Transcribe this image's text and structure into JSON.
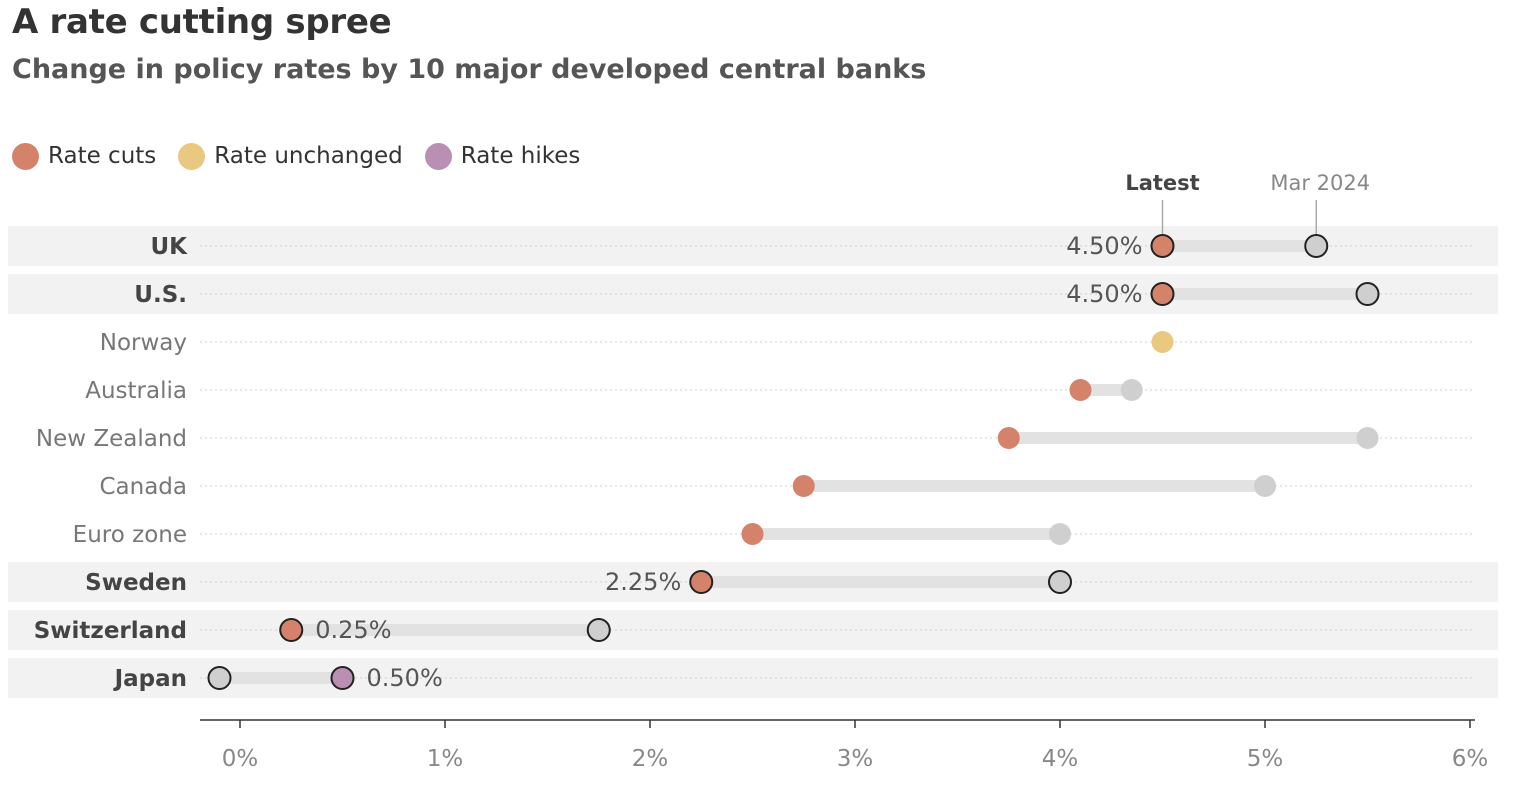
{
  "chart_data": {
    "type": "dumbbell",
    "title": "A rate cutting spree",
    "subtitle": "Change in policy rates by 10 major developed central banks",
    "legend": [
      {
        "label": "Rate cuts",
        "color": "#d4826a"
      },
      {
        "label": "Rate unchanged",
        "color": "#ebc87f"
      },
      {
        "label": "Rate hikes",
        "color": "#b98fb3"
      }
    ],
    "header_labels": {
      "latest": "Latest",
      "previous": "Mar 2024"
    },
    "x_ticks": [
      "0%",
      "1%",
      "2%",
      "3%",
      "4%",
      "5%",
      "6%"
    ],
    "xlim": [
      -0.2,
      6
    ],
    "series": [
      {
        "name": "Latest",
        "role": "latest"
      },
      {
        "name": "Mar 2024",
        "role": "previous"
      }
    ],
    "rows": [
      {
        "country": "UK",
        "latest": 4.5,
        "previous": 5.25,
        "change": "cut",
        "highlight": true,
        "label": "4.50%"
      },
      {
        "country": "U.S.",
        "latest": 4.5,
        "previous": 5.5,
        "change": "cut",
        "highlight": true,
        "label": "4.50%"
      },
      {
        "country": "Norway",
        "latest": 4.5,
        "previous": 4.5,
        "change": "unchanged",
        "highlight": false,
        "label": ""
      },
      {
        "country": "Australia",
        "latest": 4.1,
        "previous": 4.35,
        "change": "cut",
        "highlight": false,
        "label": ""
      },
      {
        "country": "New Zealand",
        "latest": 3.75,
        "previous": 5.5,
        "change": "cut",
        "highlight": false,
        "label": ""
      },
      {
        "country": "Canada",
        "latest": 2.75,
        "previous": 5.0,
        "change": "cut",
        "highlight": false,
        "label": ""
      },
      {
        "country": "Euro zone",
        "latest": 2.5,
        "previous": 4.0,
        "change": "cut",
        "highlight": false,
        "label": ""
      },
      {
        "country": "Sweden",
        "latest": 2.25,
        "previous": 4.0,
        "change": "cut",
        "highlight": true,
        "label": "2.25%"
      },
      {
        "country": "Switzerland",
        "latest": 0.25,
        "previous": 1.75,
        "change": "cut",
        "highlight": true,
        "label": "0.25%"
      },
      {
        "country": "Japan",
        "latest": 0.5,
        "previous": -0.1,
        "change": "hike",
        "highlight": true,
        "label": "0.50%"
      }
    ],
    "colors": {
      "cut": "#d4826a",
      "unchanged": "#ebc87f",
      "hike": "#b98fb3",
      "previous": "#cfcfcf",
      "range_bar": "#e2e2e2",
      "highlight_band": "#f2f2f2"
    }
  }
}
